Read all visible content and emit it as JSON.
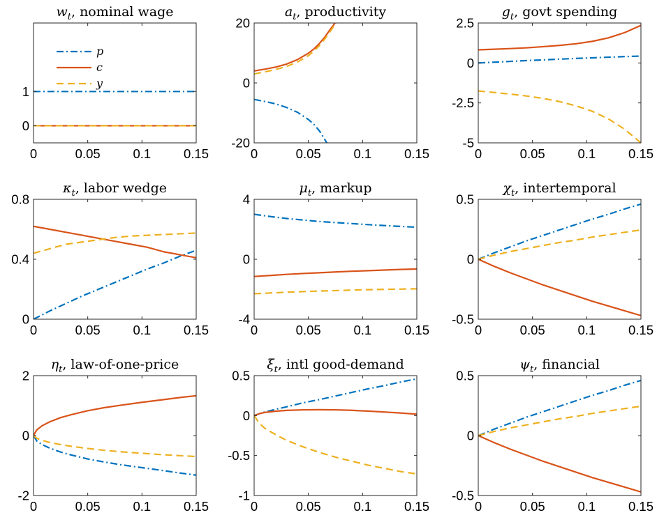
{
  "figure": {
    "colors": {
      "p": "#0072BD",
      "c": "#D95319",
      "y": "#EDB120"
    },
    "styles": {
      "p": "dashdot",
      "c": "solid",
      "y": "dashed"
    },
    "legend": {
      "placement": "top-left",
      "panel": 0,
      "entries": [
        "p",
        "c",
        "y"
      ]
    }
  },
  "chart_data": [
    {
      "type": "line",
      "title_sym": "w",
      "title_sub": "t",
      "title_text": ", nominal wage",
      "xlim": [
        0,
        0.15
      ],
      "ylim": [
        -0.5,
        3
      ],
      "xticks": [
        0,
        0.05,
        0.1,
        0.15
      ],
      "xticklabels": [
        "0",
        "0.05",
        "0.1",
        "0.15"
      ],
      "yticks": [
        0,
        1
      ],
      "yticklabels": [
        "0",
        "1"
      ],
      "x": [
        0,
        0.015,
        0.03,
        0.045,
        0.06,
        0.075,
        0.09,
        0.105,
        0.12,
        0.135,
        0.15
      ],
      "series": [
        {
          "name": "p",
          "values": [
            1,
            1,
            1,
            1,
            1,
            1,
            1,
            1,
            1,
            1,
            1
          ]
        },
        {
          "name": "c",
          "values": [
            0,
            0,
            0,
            0,
            0,
            0,
            0,
            0,
            0,
            0,
            0
          ]
        },
        {
          "name": "y",
          "values": [
            0,
            0,
            0,
            0,
            0,
            0,
            0,
            0,
            0,
            0,
            0
          ]
        }
      ]
    },
    {
      "type": "line",
      "title_sym": "a",
      "title_sub": "t",
      "title_text": ", productivity",
      "xlim": [
        0,
        0.15
      ],
      "ylim": [
        -20,
        20
      ],
      "xticks": [
        0,
        0.05,
        0.1,
        0.15
      ],
      "xticklabels": [
        "0",
        "0.05",
        "0.1",
        "0.15"
      ],
      "yticks": [
        -20,
        0,
        20
      ],
      "yticklabels": [
        "-20",
        "0",
        "20"
      ],
      "series": [
        {
          "name": "p",
          "x": [
            0,
            0.01,
            0.02,
            0.03,
            0.04,
            0.05,
            0.055,
            0.06,
            0.065,
            0.067
          ],
          "values": [
            -5.5,
            -6.2,
            -7.0,
            -8.2,
            -9.8,
            -12.2,
            -13.8,
            -15.9,
            -18.8,
            -20
          ]
        },
        {
          "name": "c",
          "x": [
            0,
            0.01,
            0.02,
            0.03,
            0.04,
            0.05,
            0.055,
            0.06,
            0.065,
            0.07,
            0.073,
            0.0745
          ],
          "values": [
            4,
            4.6,
            5.3,
            6.3,
            7.8,
            9.9,
            11.3,
            13.1,
            15.2,
            17.8,
            19.2,
            20
          ]
        },
        {
          "name": "y",
          "x": [
            0,
            0.01,
            0.02,
            0.03,
            0.04,
            0.05,
            0.055,
            0.06,
            0.065,
            0.07,
            0.073,
            0.0755
          ],
          "values": [
            3,
            3.7,
            4.5,
            5.5,
            7.0,
            9.1,
            10.6,
            12.4,
            14.6,
            17.1,
            18.7,
            20
          ]
        }
      ]
    },
    {
      "type": "line",
      "title_sym": "g",
      "title_sub": "t",
      "title_text": ", govt spending",
      "xlim": [
        0,
        0.15
      ],
      "ylim": [
        -5,
        2.5
      ],
      "xticks": [
        0,
        0.05,
        0.1,
        0.15
      ],
      "xticklabels": [
        "0",
        "0.05",
        "0.1",
        "0.15"
      ],
      "yticks": [
        -5,
        -2.5,
        0,
        2.5
      ],
      "yticklabels": [
        "-5",
        "-2.5",
        "0",
        "2.5"
      ],
      "x": [
        0,
        0.015,
        0.03,
        0.045,
        0.06,
        0.075,
        0.09,
        0.105,
        0.12,
        0.135,
        0.15
      ],
      "series": [
        {
          "name": "p",
          "values": [
            0,
            0.05,
            0.1,
            0.15,
            0.19,
            0.24,
            0.28,
            0.32,
            0.36,
            0.4,
            0.43
          ]
        },
        {
          "name": "c",
          "values": [
            0.82,
            0.86,
            0.9,
            0.95,
            1.02,
            1.1,
            1.2,
            1.35,
            1.57,
            1.9,
            2.35
          ]
        },
        {
          "name": "y",
          "values": [
            -1.75,
            -1.85,
            -1.95,
            -2.07,
            -2.22,
            -2.42,
            -2.68,
            -3.02,
            -3.5,
            -4.15,
            -5.0
          ]
        }
      ]
    },
    {
      "type": "line",
      "title_sym": "κ",
      "title_sub": "t",
      "title_text": ", labor wedge",
      "xlim": [
        0,
        0.15
      ],
      "ylim": [
        0,
        0.8
      ],
      "xticks": [
        0,
        0.05,
        0.1,
        0.15
      ],
      "xticklabels": [
        "0",
        "0.05",
        "0.1",
        "0.15"
      ],
      "yticks": [
        0,
        0.4,
        0.8
      ],
      "yticklabels": [
        "0",
        "0.4",
        "0.8"
      ],
      "x": [
        0,
        0.015,
        0.03,
        0.045,
        0.06,
        0.075,
        0.09,
        0.105,
        0.12,
        0.135,
        0.15
      ],
      "series": [
        {
          "name": "p",
          "values": [
            0,
            0.055,
            0.105,
            0.155,
            0.2,
            0.245,
            0.29,
            0.335,
            0.375,
            0.42,
            0.46
          ]
        },
        {
          "name": "c",
          "values": [
            0.62,
            0.6,
            0.58,
            0.56,
            0.54,
            0.52,
            0.5,
            0.48,
            0.45,
            0.43,
            0.41
          ]
        },
        {
          "name": "y",
          "values": [
            0.44,
            0.47,
            0.5,
            0.515,
            0.53,
            0.545,
            0.555,
            0.56,
            0.565,
            0.57,
            0.575
          ]
        }
      ]
    },
    {
      "type": "line",
      "title_sym": "μ",
      "title_sub": "t",
      "title_text": ", markup",
      "xlim": [
        0,
        0.15
      ],
      "ylim": [
        -4,
        4
      ],
      "xticks": [
        0,
        0.05,
        0.1,
        0.15
      ],
      "xticklabels": [
        "0",
        "0.05",
        "0.1",
        "0.15"
      ],
      "yticks": [
        -4,
        0,
        4
      ],
      "yticklabels": [
        "-4",
        "0",
        "4"
      ],
      "x": [
        0,
        0.015,
        0.03,
        0.045,
        0.06,
        0.075,
        0.09,
        0.105,
        0.12,
        0.135,
        0.15
      ],
      "series": [
        {
          "name": "p",
          "values": [
            3.0,
            2.85,
            2.72,
            2.62,
            2.52,
            2.45,
            2.38,
            2.31,
            2.25,
            2.19,
            2.14
          ]
        },
        {
          "name": "c",
          "values": [
            -1.15,
            -1.08,
            -1.01,
            -0.95,
            -0.9,
            -0.85,
            -0.8,
            -0.76,
            -0.72,
            -0.68,
            -0.65
          ]
        },
        {
          "name": "y",
          "values": [
            -2.3,
            -2.25,
            -2.2,
            -2.16,
            -2.12,
            -2.09,
            -2.06,
            -2.03,
            -2.01,
            -1.99,
            -1.97
          ]
        }
      ]
    },
    {
      "type": "line",
      "title_sym": "χ",
      "title_sub": "t",
      "title_text": ", intertemporal",
      "xlim": [
        0,
        0.15
      ],
      "ylim": [
        -0.5,
        0.5
      ],
      "xticks": [
        0,
        0.05,
        0.1,
        0.15
      ],
      "xticklabels": [
        "0",
        "0.05",
        "0.1",
        "0.15"
      ],
      "yticks": [
        -0.5,
        0,
        0.5
      ],
      "yticklabels": [
        "-0.5",
        "0",
        "0.5"
      ],
      "x": [
        0,
        0.015,
        0.03,
        0.045,
        0.06,
        0.075,
        0.09,
        0.105,
        0.12,
        0.135,
        0.15
      ],
      "series": [
        {
          "name": "p",
          "values": [
            0,
            0.055,
            0.105,
            0.155,
            0.2,
            0.245,
            0.29,
            0.335,
            0.375,
            0.42,
            0.46
          ]
        },
        {
          "name": "c",
          "values": [
            0,
            -0.06,
            -0.115,
            -0.165,
            -0.215,
            -0.26,
            -0.305,
            -0.35,
            -0.39,
            -0.43,
            -0.47
          ]
        },
        {
          "name": "y",
          "values": [
            0,
            0.035,
            0.065,
            0.09,
            0.115,
            0.14,
            0.16,
            0.185,
            0.205,
            0.225,
            0.245
          ]
        }
      ]
    },
    {
      "type": "line",
      "title_sym": "η",
      "title_sub": "t",
      "title_text": ", law-of-one-price",
      "xlim": [
        0,
        0.15
      ],
      "ylim": [
        -2,
        2
      ],
      "xticks": [
        0,
        0.05,
        0.1,
        0.15
      ],
      "xticklabels": [
        "0",
        "0.05",
        "0.1",
        "0.15"
      ],
      "yticks": [
        -2,
        0,
        2
      ],
      "yticklabels": [
        "-2",
        "0",
        "2"
      ],
      "x": [
        0,
        0.003,
        0.008,
        0.015,
        0.025,
        0.035,
        0.05,
        0.065,
        0.08,
        0.1,
        0.12,
        0.135,
        0.15
      ],
      "series": [
        {
          "name": "p",
          "values": [
            0,
            -0.18,
            -0.3,
            -0.42,
            -0.55,
            -0.65,
            -0.78,
            -0.88,
            -0.97,
            -1.07,
            -1.17,
            -1.25,
            -1.32
          ]
        },
        {
          "name": "c",
          "values": [
            0,
            0.19,
            0.33,
            0.46,
            0.6,
            0.7,
            0.83,
            0.93,
            1.01,
            1.11,
            1.2,
            1.27,
            1.33
          ]
        },
        {
          "name": "y",
          "values": [
            0,
            -0.09,
            -0.16,
            -0.23,
            -0.3,
            -0.36,
            -0.43,
            -0.49,
            -0.54,
            -0.59,
            -0.64,
            -0.67,
            -0.7
          ]
        }
      ]
    },
    {
      "type": "line",
      "title_sym": "ξ",
      "title_sub": "t",
      "title_text": ", intl good-demand",
      "xlim": [
        0,
        0.15
      ],
      "ylim": [
        -1,
        0.5
      ],
      "xticks": [
        0,
        0.05,
        0.1,
        0.15
      ],
      "xticklabels": [
        "0",
        "0.05",
        "0.1",
        "0.15"
      ],
      "yticks": [
        -1,
        -0.5,
        0,
        0.5
      ],
      "yticklabels": [
        "-1",
        "-0.5",
        "0",
        "0.5"
      ],
      "x": [
        0,
        0.005,
        0.01,
        0.02,
        0.03,
        0.045,
        0.06,
        0.075,
        0.09,
        0.105,
        0.12,
        0.135,
        0.15
      ],
      "series": [
        {
          "name": "p",
          "values": [
            0,
            0.025,
            0.045,
            0.08,
            0.11,
            0.16,
            0.2,
            0.245,
            0.29,
            0.335,
            0.375,
            0.42,
            0.46
          ]
        },
        {
          "name": "c",
          "values": [
            0,
            0.025,
            0.04,
            0.055,
            0.065,
            0.072,
            0.074,
            0.072,
            0.066,
            0.056,
            0.045,
            0.032,
            0.018
          ]
        },
        {
          "name": "y",
          "values": [
            0,
            -0.1,
            -0.16,
            -0.24,
            -0.31,
            -0.39,
            -0.46,
            -0.52,
            -0.57,
            -0.62,
            -0.66,
            -0.7,
            -0.73
          ]
        }
      ]
    },
    {
      "type": "line",
      "title_sym": "ψ",
      "title_sub": "t",
      "title_text": ", financial",
      "xlim": [
        0,
        0.15
      ],
      "ylim": [
        -0.5,
        0.5
      ],
      "xticks": [
        0,
        0.05,
        0.1,
        0.15
      ],
      "xticklabels": [
        "0",
        "0.05",
        "0.1",
        "0.15"
      ],
      "yticks": [
        -0.5,
        0,
        0.5
      ],
      "yticklabels": [
        "-0.5",
        "0",
        "0.5"
      ],
      "x": [
        0,
        0.015,
        0.03,
        0.045,
        0.06,
        0.075,
        0.09,
        0.105,
        0.12,
        0.135,
        0.15
      ],
      "series": [
        {
          "name": "p",
          "values": [
            0,
            0.055,
            0.105,
            0.155,
            0.2,
            0.245,
            0.29,
            0.335,
            0.375,
            0.42,
            0.46
          ]
        },
        {
          "name": "c",
          "values": [
            0,
            -0.06,
            -0.115,
            -0.165,
            -0.215,
            -0.26,
            -0.305,
            -0.35,
            -0.39,
            -0.43,
            -0.47
          ]
        },
        {
          "name": "y",
          "values": [
            0,
            0.035,
            0.065,
            0.09,
            0.115,
            0.14,
            0.16,
            0.185,
            0.205,
            0.225,
            0.245
          ]
        }
      ]
    }
  ]
}
